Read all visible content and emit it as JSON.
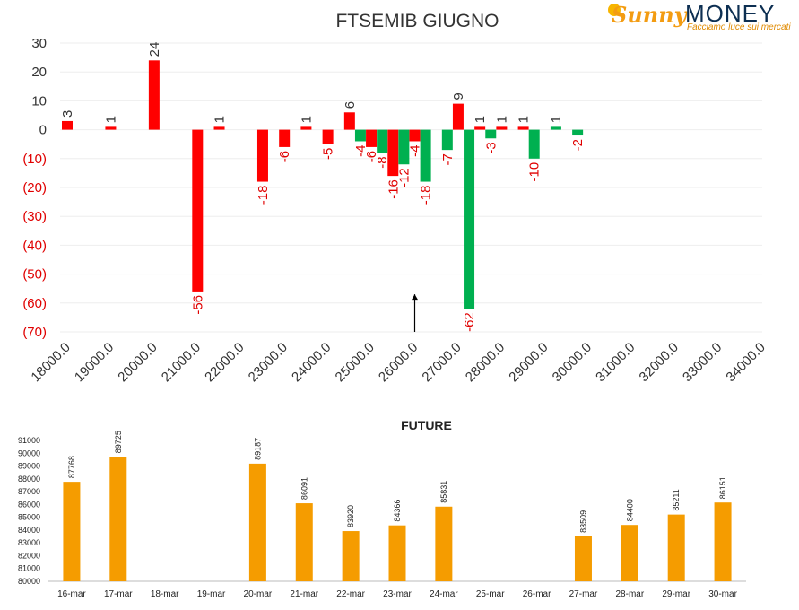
{
  "logo": {
    "sunny": "Sunny",
    "money": "MONEY",
    "tagline": "Facciamo luce sui mercati"
  },
  "colors": {
    "put": "#ff0000",
    "call": "#00b050",
    "future": "#f59c00",
    "negative_label": "#e00000",
    "text": "#333333",
    "grid": "#eeeeee"
  },
  "chart_data": [
    {
      "type": "bar",
      "title": "FTSEMIB GIUGNO",
      "ylim": [
        -70,
        30
      ],
      "yticks": [
        30,
        20,
        10,
        0,
        -10,
        -20,
        -30,
        -40,
        -50,
        -60,
        -70
      ],
      "ytick_labels": [
        "30",
        "20",
        "10",
        "0",
        "(10)",
        "(20)",
        "(30)",
        "(40)",
        "(50)",
        "(60)",
        "(70)"
      ],
      "xlim": [
        18000,
        34000
      ],
      "xticks": [
        18000,
        19000,
        20000,
        21000,
        22000,
        23000,
        24000,
        25000,
        26000,
        27000,
        28000,
        29000,
        30000,
        31000,
        32000,
        33000,
        34000
      ],
      "xtick_labels": [
        "18000.0",
        "19000.0",
        "20000.0",
        "21000.0",
        "22000.0",
        "23000.0",
        "24000.0",
        "25000.0",
        "26000.0",
        "27000.0",
        "28000.0",
        "29000.0",
        "30000.0",
        "31000.0",
        "32000.0",
        "33000.0",
        "34000.0"
      ],
      "grid": true,
      "arrow_at": 26000,
      "series": [
        {
          "color": "#ff0000",
          "points": [
            {
              "x": 18000,
              "y": 3,
              "label": "3"
            },
            {
              "x": 19000,
              "y": 1,
              "label": "1"
            },
            {
              "x": 20000,
              "y": 24,
              "label": "24"
            },
            {
              "x": 21000,
              "y": -56,
              "label": "-56"
            },
            {
              "x": 21500,
              "y": 1,
              "label": "1"
            },
            {
              "x": 22500,
              "y": -18,
              "label": "-18"
            },
            {
              "x": 23000,
              "y": -6,
              "label": "-6"
            },
            {
              "x": 23500,
              "y": 1,
              "label": "1"
            },
            {
              "x": 24000,
              "y": -5,
              "label": "-5"
            },
            {
              "x": 24500,
              "y": 6,
              "label": "6"
            },
            {
              "x": 25000,
              "y": -6,
              "label": "-6"
            },
            {
              "x": 25500,
              "y": -16,
              "label": "-16"
            },
            {
              "x": 26000,
              "y": -4,
              "label": "-4"
            },
            {
              "x": 27000,
              "y": 9,
              "label": "9"
            },
            {
              "x": 27500,
              "y": 1,
              "label": "1"
            },
            {
              "x": 28000,
              "y": 1,
              "label": "1"
            },
            {
              "x": 28500,
              "y": 1,
              "label": "1"
            }
          ]
        },
        {
          "color": "#00b050",
          "points": [
            {
              "x": 24750,
              "y": -4,
              "label": "-4"
            },
            {
              "x": 25250,
              "y": -8,
              "label": "-8"
            },
            {
              "x": 25750,
              "y": -12,
              "label": "-12"
            },
            {
              "x": 26250,
              "y": -18,
              "label": "-18"
            },
            {
              "x": 26750,
              "y": -7,
              "label": "-7"
            },
            {
              "x": 27250,
              "y": -62,
              "label": "-62"
            },
            {
              "x": 27750,
              "y": -3,
              "label": "-3"
            },
            {
              "x": 28750,
              "y": -10,
              "label": "-10"
            },
            {
              "x": 29250,
              "y": 1,
              "label": "1"
            },
            {
              "x": 29750,
              "y": -2,
              "label": "-2"
            }
          ]
        }
      ]
    },
    {
      "type": "bar",
      "title": "FUTURE",
      "ylim": [
        80000,
        91000
      ],
      "yticks": [
        91000,
        90000,
        89000,
        88000,
        87000,
        86000,
        85000,
        84000,
        83000,
        82000,
        81000,
        80000
      ],
      "categories": [
        "16-mar",
        "17-mar",
        "18-mar",
        "19-mar",
        "20-mar",
        "21-mar",
        "22-mar",
        "23-mar",
        "24-mar",
        "25-mar",
        "26-mar",
        "27-mar",
        "28-mar",
        "29-mar",
        "30-mar"
      ],
      "values": [
        87768,
        89725,
        null,
        null,
        89187,
        86091,
        83920,
        84366,
        85831,
        null,
        null,
        83509,
        84400,
        85211,
        86151
      ],
      "color": "#f59c00"
    }
  ]
}
